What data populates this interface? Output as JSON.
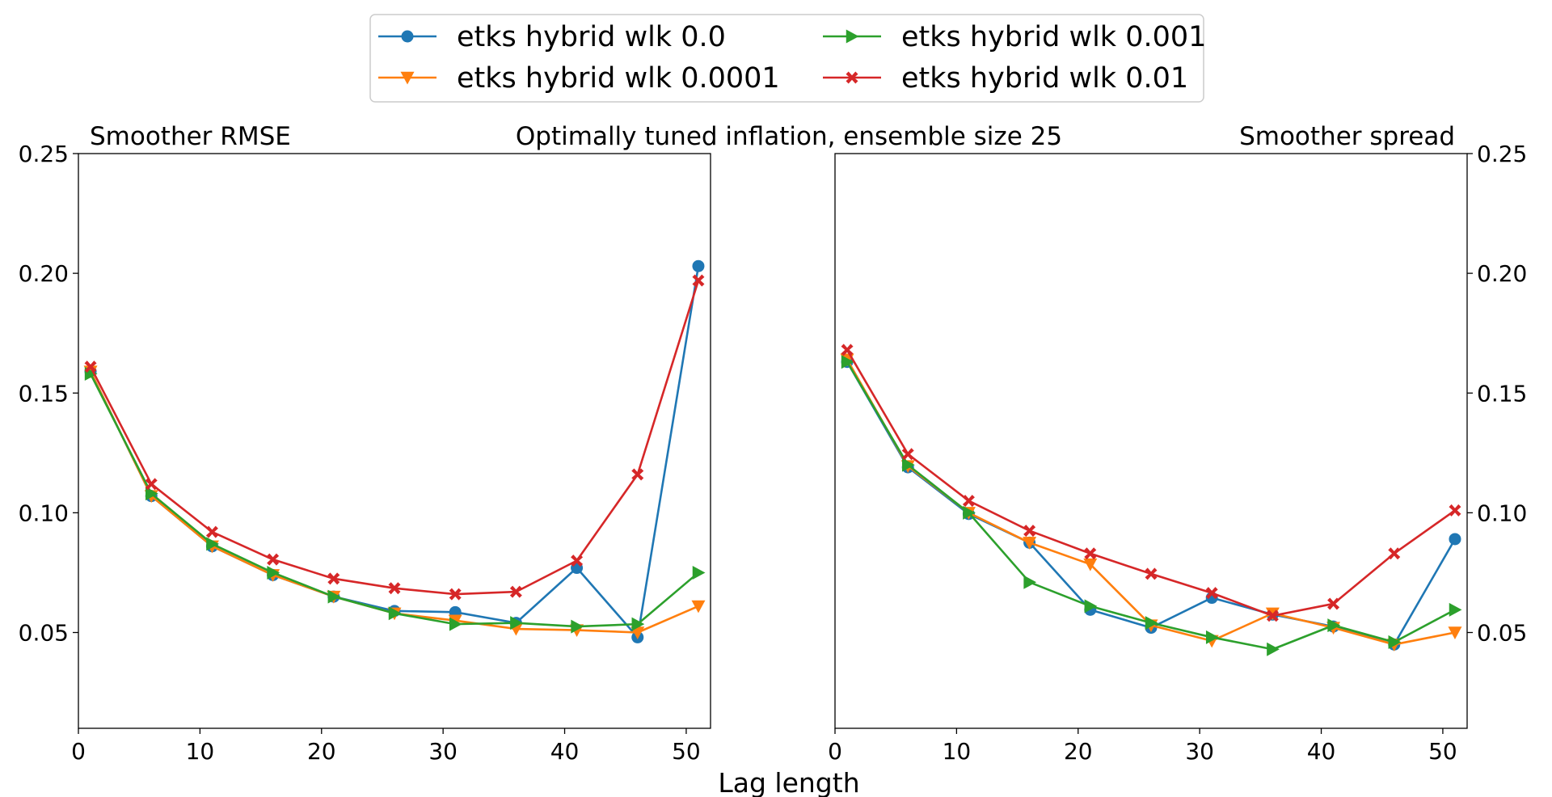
{
  "figure": {
    "center_title": "Optimally tuned inflation, ensemble size 25",
    "xlabel": "Lag length"
  },
  "legend": {
    "placement": "top-center",
    "columns": 2
  },
  "chart_data": [
    {
      "type": "line",
      "title": "Smoother RMSE",
      "xlabel": "Lag length",
      "ylabel": "",
      "xlim": [
        0,
        52
      ],
      "ylim": [
        0.01,
        0.25
      ],
      "xticks": [
        0,
        10,
        20,
        30,
        40,
        50
      ],
      "yticks": [
        0.05,
        0.1,
        0.15,
        0.2,
        0.25
      ],
      "ytick_labels": [
        "0.05",
        "0.10",
        "0.15",
        "0.20",
        "0.25"
      ],
      "yaxis_side": "left",
      "grid": false,
      "x": [
        1,
        6,
        11,
        16,
        21,
        26,
        31,
        36,
        41,
        46,
        51
      ],
      "series": [
        {
          "name": "etks hybrid wlk 0.0",
          "color": "#1f77b4",
          "marker": "circle",
          "values": [
            0.159,
            0.107,
            0.086,
            0.074,
            0.065,
            0.059,
            0.0585,
            0.054,
            0.077,
            0.048,
            0.203
          ]
        },
        {
          "name": "etks hybrid wlk 0.0001",
          "color": "#ff7f0e",
          "marker": "triangle-down",
          "values": [
            0.159,
            0.107,
            0.086,
            0.074,
            0.065,
            0.058,
            0.055,
            0.0515,
            0.051,
            0.05,
            0.061
          ]
        },
        {
          "name": "etks hybrid wlk 0.001",
          "color": "#2ca02c",
          "marker": "triangle-right",
          "values": [
            0.158,
            0.108,
            0.087,
            0.075,
            0.065,
            0.058,
            0.0535,
            0.054,
            0.0525,
            0.0535,
            0.075
          ]
        },
        {
          "name": "etks hybrid wlk 0.01",
          "color": "#d62728",
          "marker": "x",
          "values": [
            0.161,
            0.112,
            0.092,
            0.0805,
            0.0725,
            0.0685,
            0.066,
            0.067,
            0.08,
            0.116,
            0.197
          ]
        }
      ]
    },
    {
      "type": "line",
      "title": "Smoother spread",
      "xlabel": "Lag length",
      "ylabel": "",
      "xlim": [
        0,
        52
      ],
      "ylim": [
        0.01,
        0.25
      ],
      "xticks": [
        0,
        10,
        20,
        30,
        40,
        50
      ],
      "yticks": [
        0.05,
        0.1,
        0.15,
        0.2,
        0.25
      ],
      "ytick_labels": [
        "0.05",
        "0.10",
        "0.15",
        "0.20",
        "0.25"
      ],
      "yaxis_side": "right",
      "grid": false,
      "x": [
        1,
        6,
        11,
        16,
        21,
        26,
        31,
        36,
        41,
        46,
        51
      ],
      "series": [
        {
          "name": "etks hybrid wlk 0.0",
          "color": "#1f77b4",
          "marker": "circle",
          "values": [
            0.163,
            0.119,
            0.0995,
            0.0875,
            0.0595,
            0.052,
            0.0645,
            0.0575,
            0.0525,
            0.045,
            0.089
          ]
        },
        {
          "name": "etks hybrid wlk 0.0001",
          "color": "#ff7f0e",
          "marker": "triangle-down",
          "values": [
            0.164,
            0.1195,
            0.1,
            0.0875,
            0.0785,
            0.053,
            0.0465,
            0.058,
            0.052,
            0.045,
            0.05
          ]
        },
        {
          "name": "etks hybrid wlk 0.001",
          "color": "#2ca02c",
          "marker": "triangle-right",
          "values": [
            0.163,
            0.12,
            0.1,
            0.071,
            0.061,
            0.054,
            0.048,
            0.043,
            0.053,
            0.046,
            0.0595
          ]
        },
        {
          "name": "etks hybrid wlk 0.01",
          "color": "#d62728",
          "marker": "x",
          "values": [
            0.168,
            0.1245,
            0.105,
            0.0925,
            0.083,
            0.0745,
            0.0665,
            0.057,
            0.062,
            0.083,
            0.101
          ]
        }
      ]
    }
  ]
}
